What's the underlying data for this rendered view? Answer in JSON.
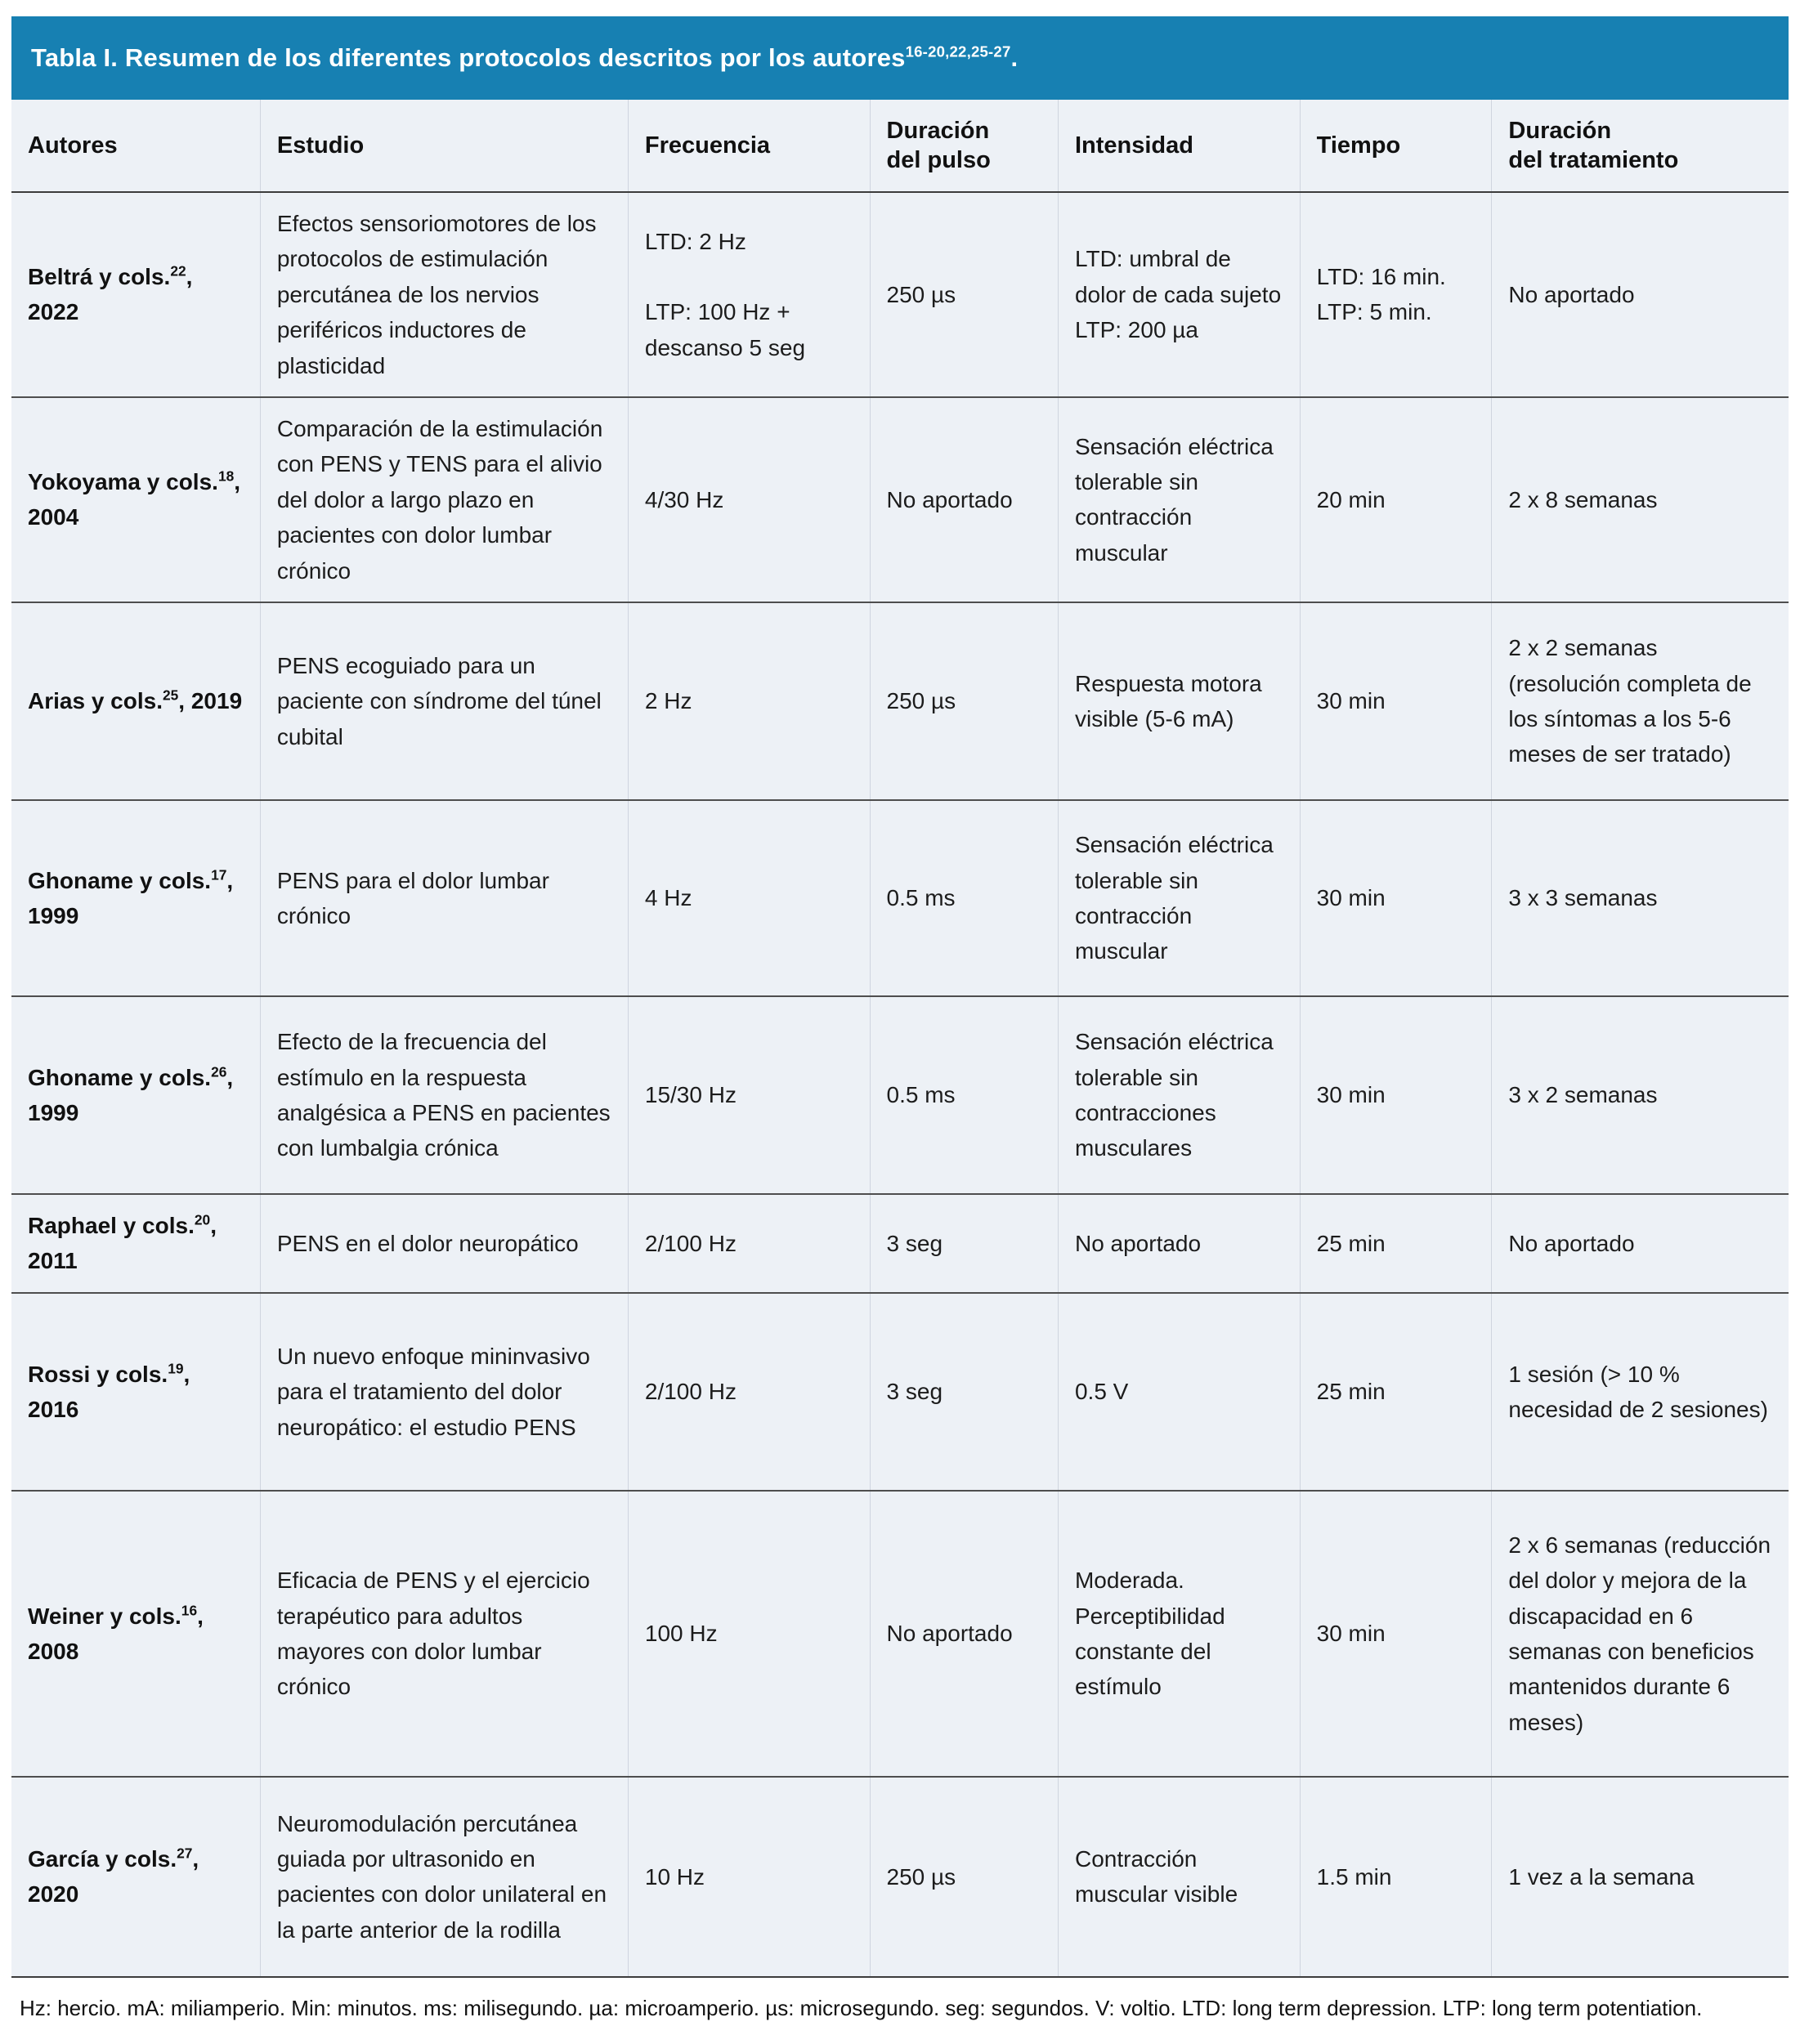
{
  "title": {
    "main": "Tabla I. Resumen de los diferentes protocolos descritos por los autores",
    "refs": "16-20,22,25-27",
    "suffix": "."
  },
  "table": {
    "headers": [
      "Autores",
      "Estudio",
      "Frecuencia",
      "Duración\ndel pulso",
      "Intensidad",
      "Tiempo",
      "Duración\ndel tratamiento"
    ],
    "rows": [
      {
        "author": "Beltrá y cols.",
        "ref": "22",
        "year": "2022",
        "estudio": "Efectos sensoriomotores de los protocolos de estimulación percutánea de los nervios periféricos inductores de plasticidad",
        "frecuencia": "LTD: 2 Hz\n\nLTP: 100 Hz +\ndescanso 5 seg",
        "pulso": "250 µs",
        "intensidad": "LTD: umbral de dolor de cada sujeto\nLTP: 200 µa",
        "tiempo": "LTD: 16 min.\nLTP: 5 min.",
        "tratamiento": "No aportado"
      },
      {
        "author": "Yokoyama y cols.",
        "ref": "18",
        "year": "2004",
        "estudio": "Comparación de la estimulación con PENS y TENS para el alivio del dolor a largo plazo en pacientes con dolor lumbar crónico",
        "frecuencia": "4/30 Hz",
        "pulso": "No aportado",
        "intensidad": "Sensación eléctrica tolerable sin contracción muscular",
        "tiempo": "20 min",
        "tratamiento": "2 x 8 semanas"
      },
      {
        "author": "Arias y cols.",
        "ref": "25",
        "year": "2019",
        "estudio": "PENS ecoguiado para un paciente con síndrome del túnel cubital",
        "frecuencia": "2 Hz",
        "pulso": "250 µs",
        "intensidad": "Respuesta motora visible (5-6 mA)",
        "tiempo": "30 min",
        "tratamiento": "2 x 2 semanas (resolución completa de los síntomas a los 5-6 meses de ser tratado)"
      },
      {
        "author": "Ghoname y cols.",
        "ref": "17",
        "year": "1999",
        "estudio": "PENS para el dolor lumbar crónico",
        "frecuencia": "4 Hz",
        "pulso": "0.5 ms",
        "intensidad": "Sensación eléctrica tolerable sin contracción muscular",
        "tiempo": "30 min",
        "tratamiento": "3 x 3 semanas"
      },
      {
        "author": "Ghoname y cols.",
        "ref": "26",
        "year": "1999",
        "estudio": "Efecto de la frecuencia del estímulo en la respuesta analgésica a PENS en pacientes con lumbalgia crónica",
        "frecuencia": "15/30 Hz",
        "pulso": "0.5 ms",
        "intensidad": "Sensación eléctrica tolerable sin contracciones musculares",
        "tiempo": "30 min",
        "tratamiento": "3 x 2 semanas"
      },
      {
        "author": "Raphael y cols.",
        "ref": "20",
        "year": "2011",
        "estudio": "PENS en el dolor neuropático",
        "frecuencia": "2/100 Hz",
        "pulso": "3 seg",
        "intensidad": "No aportado",
        "tiempo": "25 min",
        "tratamiento": "No aportado"
      },
      {
        "author": "Rossi y cols.",
        "ref": "19",
        "year": "2016",
        "estudio": "Un nuevo enfoque mininvasivo para el tratamiento del dolor neuropático: el estudio PENS",
        "frecuencia": "2/100 Hz",
        "pulso": "3 seg",
        "intensidad": "0.5 V",
        "tiempo": "25 min",
        "tratamiento": "1 sesión (> 10 % necesidad de 2 sesiones)"
      },
      {
        "author": "Weiner y cols.",
        "ref": "16",
        "year": "2008",
        "estudio": "Eficacia de PENS y el ejercicio terapéutico para adultos mayores con dolor lumbar crónico",
        "frecuencia": "100 Hz",
        "pulso": "No aportado",
        "intensidad": "Moderada. Perceptibilidad constante del estímulo",
        "tiempo": "30 min",
        "tratamiento": "2 x 6 semanas (reducción del dolor y mejora de la discapacidad en 6 semanas con beneficios mantenidos durante 6 meses)"
      },
      {
        "author": "García y cols.",
        "ref": "27",
        "year": "2020",
        "estudio": "Neuromodulación percutánea guiada por ultrasonido en pacientes con dolor unilateral en la parte anterior de la rodilla",
        "frecuencia": "10 Hz",
        "pulso": "250 µs",
        "intensidad": "Contracción muscular visible",
        "tiempo": "1.5 min",
        "tratamiento": "1 vez a la semana"
      }
    ]
  },
  "footnote": "Hz: hercio. mA: miliamperio. Min: minutos. ms: milisegundo. µa: microamperio. µs: microsegundo. seg: segundos. V: voltio. LTD: long term depression. LTP: long term potentiation."
}
